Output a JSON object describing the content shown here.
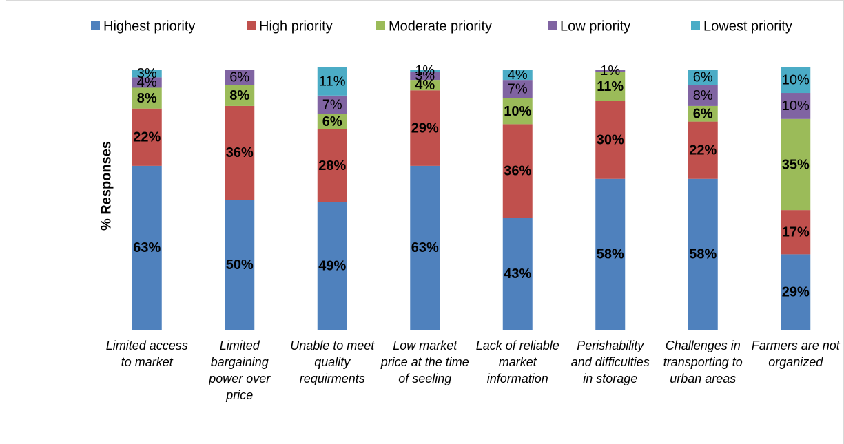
{
  "chart_data": {
    "type": "stacked_bar",
    "y_label": "% Responses",
    "categories": [
      "Limited access to market",
      "Limited bargaining power over price",
      "Unable to meet quality requirments",
      "Low market price at the time of seeling",
      "Lack of reliable market information",
      "Perishability and difficulties in storage",
      "Challenges in transporting to urban areas",
      "Farmers are not organized"
    ],
    "series": [
      {
        "name": "Highest priority",
        "color": "#4f81bd",
        "values": [
          63,
          50,
          49,
          63,
          43,
          58,
          58,
          29
        ],
        "value_labels": [
          "63%",
          "50%",
          "49%",
          "63%",
          "43%",
          "58%",
          "58%",
          "29%"
        ]
      },
      {
        "name": "High priority",
        "color": "#c0504d",
        "values": [
          22,
          36,
          28,
          29,
          36,
          30,
          22,
          17
        ],
        "value_labels": [
          "22%",
          "36%",
          "28%",
          "29%",
          "36%",
          "30%",
          "22%",
          "17%"
        ]
      },
      {
        "name": "Moderate priority",
        "color": "#9bbb59",
        "values": [
          8,
          8,
          6,
          4,
          10,
          11,
          6,
          35
        ],
        "value_labels": [
          "8%",
          "8%",
          "6%",
          "4%",
          "10%",
          "11%",
          "6%",
          "35%"
        ]
      },
      {
        "name": "Low priority",
        "color": "#8064a2",
        "values": [
          4,
          6,
          7,
          3,
          7,
          1,
          8,
          10
        ],
        "value_labels": [
          "4%",
          "6%",
          "7%",
          "3%",
          "7%",
          "1%",
          "8%",
          "10%"
        ]
      },
      {
        "name": "Lowest priority",
        "color": "#4bacc6",
        "values": [
          3,
          0,
          11,
          1,
          4,
          0,
          6,
          10
        ],
        "value_labels": [
          "3%",
          null,
          "11%",
          "1%",
          "4%",
          null,
          "6%",
          "10%"
        ]
      }
    ],
    "ylim": [
      0,
      100
    ],
    "legend": "top"
  }
}
